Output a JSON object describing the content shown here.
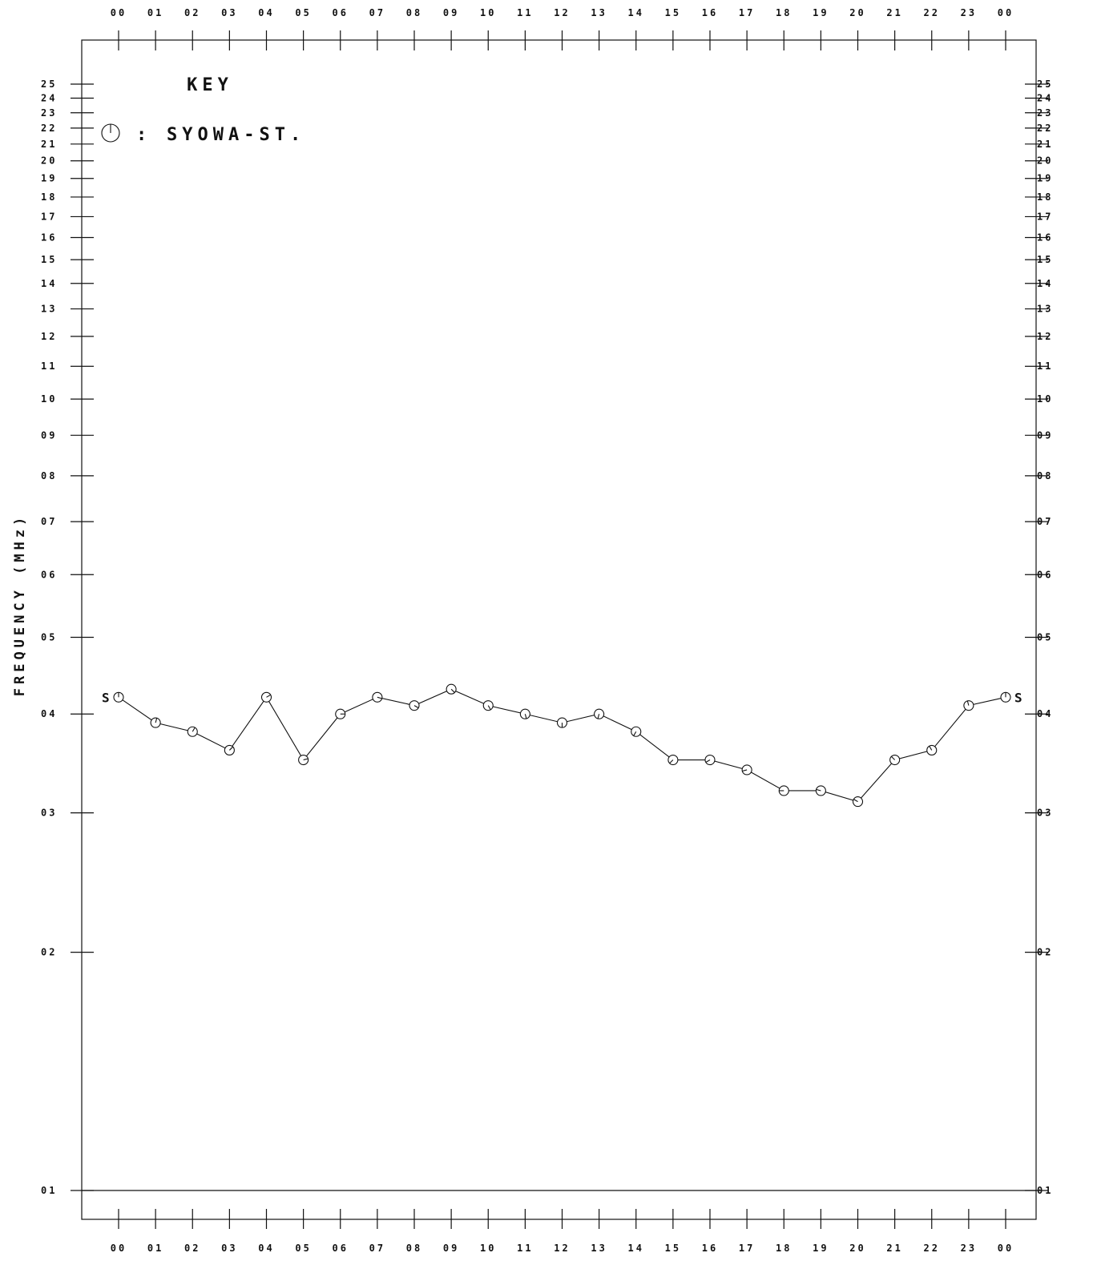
{
  "chart_data": {
    "type": "line",
    "x_ticks": [
      "00",
      "01",
      "02",
      "03",
      "04",
      "05",
      "06",
      "07",
      "08",
      "09",
      "10",
      "11",
      "12",
      "13",
      "14",
      "15",
      "16",
      "17",
      "18",
      "19",
      "20",
      "21",
      "22",
      "23",
      "00"
    ],
    "y_ticks": [
      "01",
      "02",
      "03",
      "04",
      "05",
      "06",
      "07",
      "08",
      "09",
      "10",
      "11",
      "12",
      "13",
      "14",
      "15",
      "16",
      "17",
      "18",
      "19",
      "20",
      "21",
      "22",
      "23",
      "24",
      "25"
    ],
    "ylabel": "FREQUENCY (MHz)",
    "yscale": "log",
    "ylim": [
      1,
      25
    ],
    "key_title": "KEY",
    "series": [
      {
        "name": "SYOWA-ST.",
        "marker": "circle-with-hand",
        "end_label": "S",
        "values": [
          4.2,
          3.9,
          3.8,
          3.6,
          4.2,
          3.5,
          4.0,
          4.2,
          4.1,
          4.3,
          4.1,
          4.0,
          3.9,
          4.0,
          3.8,
          3.5,
          3.5,
          3.4,
          3.2,
          3.2,
          3.1,
          3.5,
          3.6,
          4.1,
          4.2
        ]
      }
    ],
    "grid": false,
    "legend_position": "top-left"
  }
}
